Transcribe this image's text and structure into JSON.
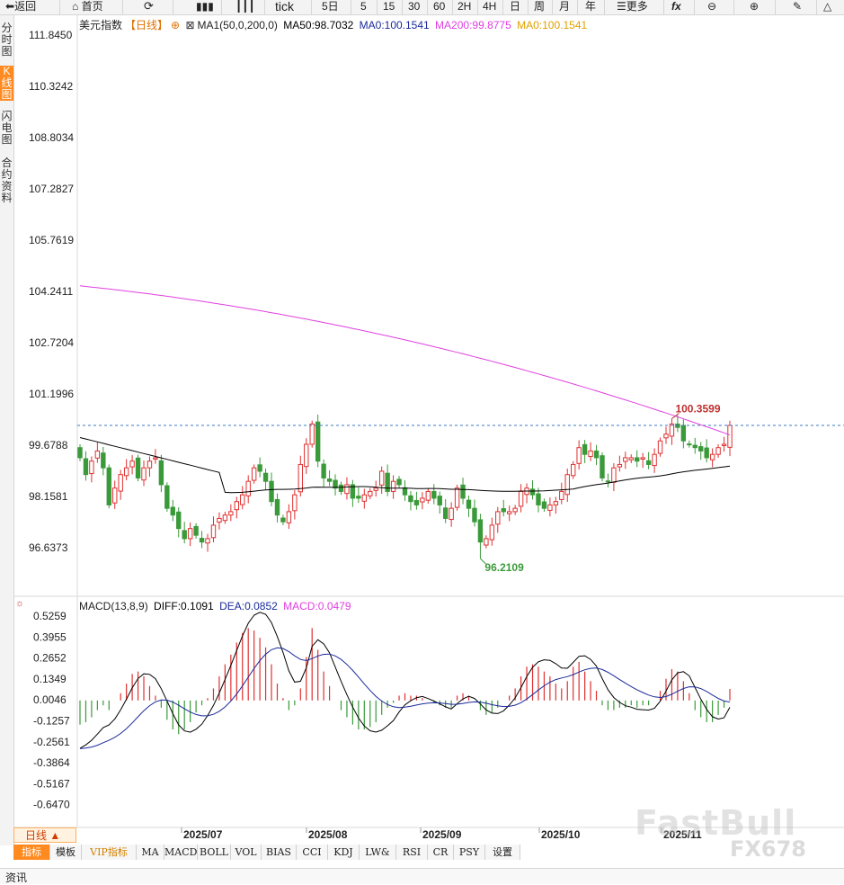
{
  "toolbar": {
    "back": "返回",
    "home": "首页",
    "tick": "tick",
    "five_day": "5日",
    "p5": "5",
    "p15": "15",
    "p30": "30",
    "p60": "60",
    "p2h": "2H",
    "p4h": "4H",
    "day": "日",
    "week": "周",
    "month": "月",
    "year": "年",
    "more": "更多",
    "fx": "fx"
  },
  "leftbar": [
    "分时图",
    "K线图",
    "闪电图",
    "合约资料"
  ],
  "legend": {
    "symbol": "美元指数",
    "period": "【日线】",
    "ma_name": "MA1(50,0,200,0)",
    "ma50": "MA50:98.7032",
    "ma0a": "MA0:100.1541",
    "ma200": "MA200:99.8775",
    "ma0b": "MA0:100.1541"
  },
  "macd_legend": {
    "name": "MACD(13,8,9)",
    "diff": "DIFF:0.1091",
    "dea": "DEA:0.0852",
    "macd": "MACD:0.0479"
  },
  "period_selector": "日线 ▲",
  "tabs": [
    "指标",
    "模板",
    "VIP指标",
    "MA",
    "MACD",
    "BOLL",
    "VOL",
    "BIAS",
    "CCI",
    "KDJ",
    "LW&",
    "RSI",
    "CR",
    "PSY",
    "设置"
  ],
  "footer": "资讯",
  "watermark": "FastBull",
  "watermark2": "FX678",
  "colors": {
    "up": "#e03030",
    "down": "#3a9a3a",
    "ma200": "#e040e0",
    "ma50": "#000000",
    "dea": "#1a2a9a",
    "accent": "#ff8a1f"
  },
  "chart_data": {
    "type": "candlestick",
    "price_ticks": [
      "111.8450",
      "110.3242",
      "108.8034",
      "107.2827",
      "105.7619",
      "104.2411",
      "102.7204",
      "101.1996",
      "99.6788",
      "98.1581",
      "96.6373"
    ],
    "macd_ticks": [
      "0.5259",
      "0.3955",
      "0.2652",
      "0.1349",
      "0.0046",
      "-0.1257",
      "-0.2561",
      "-0.3864",
      "-0.5167",
      "-0.6470"
    ],
    "x_labels": [
      "2025/07",
      "2025/08",
      "2025/09",
      "2025/10",
      "2025/11"
    ],
    "high_label": "100.3599",
    "low_label": "96.2109",
    "last_price": 100.16,
    "high_value": 100.3599,
    "low_value": 96.2109,
    "closes": [
      99.2,
      98.7,
      99.1,
      99.4,
      98.9,
      97.8,
      98.3,
      98.7,
      98.9,
      99.1,
      98.6,
      98.9,
      99.1,
      99.2,
      98.4,
      97.7,
      97.5,
      97.1,
      96.8,
      97.1,
      96.9,
      96.7,
      96.8,
      97.2,
      97.4,
      97.5,
      97.6,
      97.9,
      98.1,
      98.5,
      98.9,
      98.8,
      98.5,
      97.9,
      97.5,
      97.3,
      97.6,
      98.1,
      99.0,
      99.6,
      100.2,
      99.1,
      98.6,
      98.5,
      98.3,
      98.2,
      98.4,
      98.0,
      98.0,
      98.1,
      98.2,
      98.3,
      98.8,
      98.2,
      98.5,
      98.4,
      98.1,
      97.9,
      97.8,
      98.0,
      98.2,
      98.0,
      97.8,
      97.4,
      97.7,
      98.3,
      98.0,
      97.7,
      97.3,
      96.7,
      96.8,
      97.2,
      97.6,
      97.6,
      97.6,
      97.7,
      98.2,
      98.3,
      98.1,
      97.8,
      97.7,
      97.8,
      97.9,
      98.2,
      98.7,
      99.0,
      99.5,
      99.3,
      99.4,
      99.2,
      98.6,
      98.5,
      98.9,
      99.0,
      99.2,
      99.2,
      99.1,
      99.2,
      99.0,
      99.3,
      99.7,
      99.9,
      100.2,
      100.1,
      99.7,
      99.6,
      99.5,
      99.4,
      99.2,
      99.3,
      99.5,
      99.6,
      100.16
    ],
    "ma200_start": 104.3,
    "ma200_end": 99.8775,
    "macd_values": [
      -0.1,
      -0.09,
      -0.07,
      -0.04,
      -0.02,
      -0.04,
      0.0,
      0.03,
      0.07,
      0.11,
      0.12,
      0.1,
      0.06,
      0.02,
      -0.03,
      -0.08,
      -0.12,
      -0.14,
      -0.12,
      -0.09,
      -0.05,
      -0.02,
      0.01,
      0.05,
      0.1,
      0.15,
      0.19,
      0.24,
      0.28,
      0.3,
      0.29,
      0.26,
      0.22,
      0.15,
      0.07,
      0.01,
      -0.04,
      -0.02,
      0.05,
      0.18,
      0.3,
      0.21,
      0.12,
      0.06,
      0.0,
      -0.04,
      -0.07,
      -0.1,
      -0.12,
      -0.12,
      -0.11,
      -0.09,
      -0.06,
      -0.03,
      -0.01,
      0.02,
      0.03,
      0.02,
      0.02,
      0.01,
      0.0,
      -0.01,
      -0.02,
      -0.03,
      -0.03,
      0.02,
      0.03,
      0.02,
      0.0,
      -0.04,
      -0.06,
      -0.05,
      -0.03,
      0.0,
      0.02,
      0.05,
      0.1,
      0.14,
      0.15,
      0.14,
      0.12,
      0.1,
      0.07,
      0.05,
      0.08,
      0.14,
      0.16,
      0.12,
      0.08,
      0.04,
      -0.02,
      -0.04,
      -0.04,
      -0.03,
      -0.03,
      -0.02,
      -0.03,
      -0.02,
      -0.02,
      0.0,
      0.04,
      0.09,
      0.13,
      0.12,
      0.08,
      0.03,
      -0.04,
      -0.07,
      -0.09,
      -0.09,
      -0.06,
      -0.03,
      0.0479
    ]
  }
}
